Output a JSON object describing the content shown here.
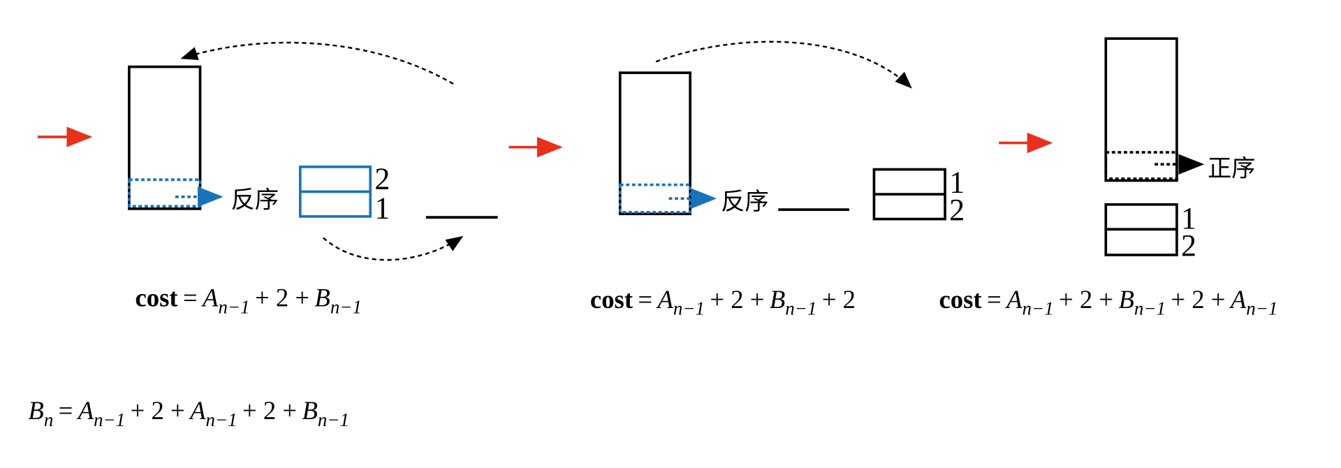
{
  "panels": [
    {
      "sort_label": "反序",
      "stack_labels": [
        "2",
        "1"
      ],
      "formula": [
        "cost",
        "=",
        {
          "v": "A",
          "sub": "n−1"
        },
        "+ 2 +",
        {
          "v": "B",
          "sub": "n−1"
        }
      ]
    },
    {
      "sort_label": "反序",
      "stack_labels": [
        "1",
        "2"
      ],
      "formula": [
        "cost",
        "=",
        {
          "v": "A",
          "sub": "n−1"
        },
        "+ 2 +",
        {
          "v": "B",
          "sub": "n−1"
        },
        "+ 2"
      ]
    },
    {
      "sort_label": "正序",
      "stack_labels": [
        "1",
        "2"
      ],
      "formula": [
        "cost",
        "=",
        {
          "v": "A",
          "sub": "n−1"
        },
        "+ 2 +",
        {
          "v": "B",
          "sub": "n−1"
        },
        "+ 2 +",
        {
          "v": "A",
          "sub": "n−1"
        }
      ]
    }
  ],
  "recurrence": [
    {
      "v": "B",
      "sub": "n"
    },
    "=",
    {
      "v": "A",
      "sub": "n−1"
    },
    "+ 2 +",
    {
      "v": "A",
      "sub": "n−1"
    },
    "+ 2 +",
    {
      "v": "B",
      "sub": "n−1"
    }
  ]
}
